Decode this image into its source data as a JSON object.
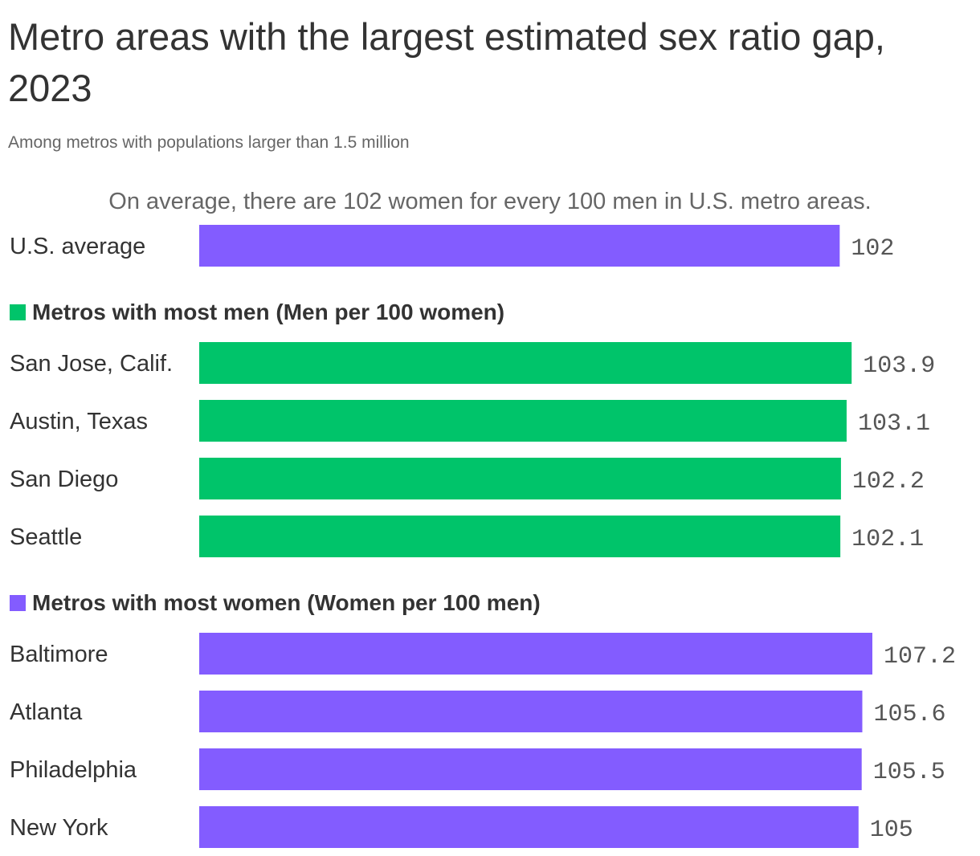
{
  "title": "Metro areas with the largest estimated sex ratio gap, 2023",
  "subtitle": "Among metros with populations larger than 1.5 million",
  "chart_data": {
    "type": "bar",
    "orientation": "horizontal",
    "annotation": "On average, there are 102 women for every 100 men in U.S. metro areas.",
    "xlim": [
      0,
      107.2
    ],
    "grid": false,
    "colors": {
      "men": "#00c46a",
      "women": "#835cff",
      "average": "#835cff"
    },
    "groups": [
      {
        "key": "average",
        "title": "",
        "color": "#835cff",
        "rows": [
          {
            "label": "U.S. average",
            "value": 102,
            "display": "102"
          }
        ]
      },
      {
        "key": "men",
        "title": "Metros with most men (Men per 100 women)",
        "color": "#00c46a",
        "rows": [
          {
            "label": "San Jose, Calif.",
            "value": 103.9,
            "display": "103.9"
          },
          {
            "label": "Austin, Texas",
            "value": 103.1,
            "display": "103.1"
          },
          {
            "label": "San Diego",
            "value": 102.2,
            "display": "102.2"
          },
          {
            "label": "Seattle",
            "value": 102.1,
            "display": "102.1"
          }
        ]
      },
      {
        "key": "women",
        "title": "Metros with most women (Women per 100 men)",
        "color": "#835cff",
        "rows": [
          {
            "label": "Baltimore",
            "value": 107.2,
            "display": "107.2"
          },
          {
            "label": "Atlanta",
            "value": 105.6,
            "display": "105.6"
          },
          {
            "label": "Philadelphia",
            "value": 105.5,
            "display": "105.5"
          },
          {
            "label": "New York",
            "value": 105,
            "display": "105"
          }
        ]
      }
    ]
  }
}
